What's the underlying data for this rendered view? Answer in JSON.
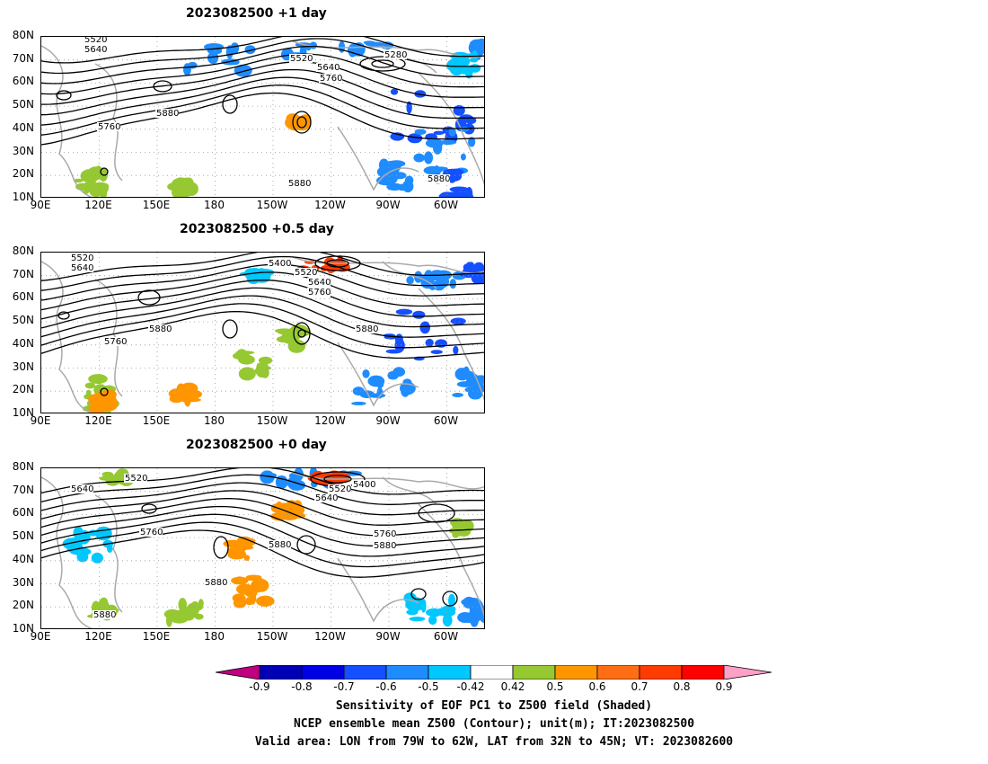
{
  "panels": [
    {
      "title": "2023082500  +1 day",
      "contour_labels": [
        "5520",
        "5640",
        "5520",
        "5640",
        "5760",
        "5280",
        "5880",
        "5760",
        "5880",
        "5880"
      ]
    },
    {
      "title": "2023082500  +0.5 day",
      "contour_labels": [
        "5520",
        "5640",
        "5400",
        "5520",
        "5640",
        "5760",
        "5880",
        "5760",
        "5880"
      ]
    },
    {
      "title": "2023082500  +0 day",
      "contour_labels": [
        "5640",
        "5520",
        "5400",
        "5520",
        "5640",
        "5760",
        "5880",
        "5880",
        "5760",
        "5880",
        "5880"
      ]
    }
  ],
  "lat_labels": [
    "80N",
    "70N",
    "60N",
    "50N",
    "40N",
    "30N",
    "20N",
    "10N"
  ],
  "lon_labels": [
    "90E",
    "120E",
    "150E",
    "180",
    "150W",
    "120W",
    "90W",
    "60W"
  ],
  "colorbar": {
    "ticks": [
      "-0.9",
      "-0.8",
      "-0.7",
      "-0.6",
      "-0.5",
      "-0.42",
      "0.42",
      "0.5",
      "0.6",
      "0.7",
      "0.8",
      "0.9"
    ],
    "colors": [
      "#c00080",
      "#0000b4",
      "#0000e6",
      "#1450ff",
      "#1e8cff",
      "#00c8ff",
      "#ffffff",
      "#96c832",
      "#ff9600",
      "#ff6e14",
      "#ff3c00",
      "#ff0000",
      "#ffa0c8"
    ]
  },
  "shading_colors": {
    "strong_negative": "#1450ff",
    "negative": "#1e8cff",
    "weak_negative": "#00c8ff",
    "weak_positive": "#96c832",
    "positive": "#ff9600",
    "strong_positive": "#ff3c00",
    "coast": "#aaaaaa",
    "grid": "#999999",
    "contour": "#000000"
  },
  "captions": [
    "Sensitivity of EOF PC1 to Z500 field (Shaded)",
    "NCEP ensemble mean Z500 (Contour); unit(m); IT:2023082500",
    "Valid area: LON from 79W to 62W, LAT from 32N to 45N; VT: 2023082600"
  ]
}
